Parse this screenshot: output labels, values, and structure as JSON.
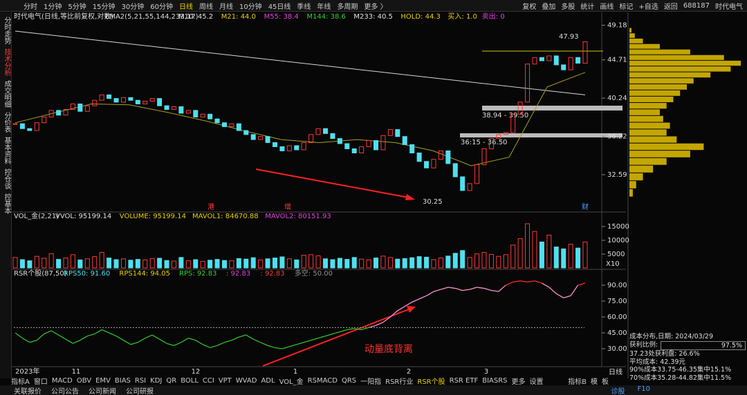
{
  "toolbar": {
    "periods": [
      "分时",
      "1分钟",
      "5分钟",
      "15分钟",
      "30分钟",
      "60分钟",
      "日线",
      "周线",
      "月线",
      "10分钟",
      "45日线",
      "季线",
      "年线",
      "多周期",
      "更多 〉"
    ],
    "tools": [
      "复权",
      "叠加",
      "多股",
      "统计",
      "画线",
      "标记",
      "+自选",
      "返回"
    ],
    "code": "688187",
    "name": "时代电气"
  },
  "sidebar": [
    "分时走势",
    "技术分析",
    "成交明细",
    "分价表",
    "基本资料",
    "控仓谈",
    "控基本"
  ],
  "price_header": {
    "title": "时代电气(日线,等比前复权,对数)",
    "indicator": "EMA2(5,21,55,144,233,17)",
    "stats": [
      {
        "text": "M10: 45.2",
        "color": "#e0e0e0"
      },
      {
        "text": "M21: 44.0",
        "color": "#e8d000"
      },
      {
        "text": "M55: 38.4",
        "color": "#e040e0"
      },
      {
        "text": "M144: 38.6",
        "color": "#30d030"
      },
      {
        "text": "M233: 40.5",
        "color": "#e0e0e0"
      },
      {
        "text": "HOLD: 44.3",
        "color": "#e8d000"
      },
      {
        "text": "买入: 1.0",
        "color": "#e8d000"
      },
      {
        "text": "卖出: 0",
        "color": "#e040e0"
      }
    ]
  },
  "annotations": {
    "high": "47.93",
    "range1": "38.94 - 39.50",
    "range2": "36:15 - 36.50",
    "low": "30.25",
    "markers": [
      "港",
      "增",
      "财"
    ],
    "divergence": "动量底背离"
  },
  "price_chart": {
    "type": "candlestick",
    "log_scale": true,
    "ylim": [
      29.8,
      49.8
    ],
    "yticks": [
      49.18,
      44.71,
      40.24,
      36.22,
      32.59
    ],
    "up_color": "#ff3838",
    "down_color": "#4ee0f0",
    "closes": [
      37.5,
      37.0,
      36.8,
      37.6,
      38.2,
      38.9,
      38.4,
      39.0,
      39.6,
      38.8,
      39.4,
      40.0,
      40.6,
      40.2,
      39.8,
      40.3,
      40.0,
      39.6,
      39.9,
      40.2,
      39.4,
      39.0,
      39.3,
      38.6,
      38.9,
      38.2,
      38.5,
      38.0,
      37.6,
      37.2,
      37.5,
      36.8,
      36.4,
      35.9,
      36.2,
      35.6,
      35.2,
      34.8,
      35.3,
      34.9,
      35.6,
      36.4,
      37.0,
      36.5,
      36.0,
      35.5,
      35.0,
      34.6,
      35.2,
      35.8,
      34.9,
      36.3,
      36.9,
      36.2,
      35.4,
      34.6,
      33.8,
      33.2,
      34.0,
      34.8,
      33.6,
      32.4,
      31.2,
      31.8,
      33.5,
      35.0,
      36.0,
      36.4,
      36.6,
      38.5,
      39.8,
      44.2,
      45.0,
      44.6,
      45.2,
      44.1,
      43.5,
      45.0,
      44.3,
      47.0
    ],
    "long_ma": {
      "color": "#d8d8d8",
      "values": [
        48.4,
        40.6
      ]
    },
    "short_ma": {
      "color": "#a8a020",
      "values": [
        37.6,
        38.6,
        39.6,
        39.5,
        38.7,
        37.8,
        36.8,
        35.9,
        35.6,
        35.9,
        35.6,
        34.8,
        33.4,
        34.2,
        41.5,
        43.2
      ]
    },
    "x_labels": [
      "2023年",
      "11",
      "12",
      "1",
      "2",
      "3"
    ],
    "period": "日线"
  },
  "volume_chart": {
    "type": "bar",
    "title": "VOL_金(2,21)",
    "stats": [
      {
        "text": "VVOL: 95199.14",
        "color": "#e0e0e0"
      },
      {
        "text": "VOLUME: 95199.14",
        "color": "#e8d000"
      },
      {
        "text": "MAVOL1: 84670.88",
        "color": "#e8d000"
      },
      {
        "text": "MAVOL2: 80151.93",
        "color": "#e040e0"
      }
    ],
    "ylim": [
      0,
      20000
    ],
    "yticks": [
      5000,
      10000,
      15000
    ],
    "unit": "X10",
    "values": [
      3800,
      3000,
      2600,
      4200,
      3500,
      5200,
      3100,
      3600,
      4800,
      2900,
      3300,
      4100,
      5600,
      3600,
      3000,
      3300,
      2800,
      3100,
      2900,
      3400,
      3500,
      2700,
      2500,
      3800,
      2600,
      3000,
      2400,
      2800,
      3100,
      2700,
      2600,
      3400,
      3200,
      3700,
      2900,
      3300,
      3600,
      4000,
      3300,
      2900,
      4600,
      4800,
      4400,
      3300,
      3000,
      3500,
      3100,
      3800,
      3200,
      2900,
      3600,
      4300,
      3800,
      3200,
      3400,
      3700,
      4100,
      3900,
      3000,
      3600,
      4300,
      5300,
      6300,
      3800,
      5100,
      5600,
      4900,
      4200,
      4800,
      8300,
      10600,
      16000,
      13200,
      9400,
      11900,
      7600,
      6900,
      8600,
      7200,
      9400
    ]
  },
  "rsr_chart": {
    "type": "line",
    "title": "RSR个股(87,50)",
    "stats": [
      {
        "text": "RPS50: 91.60",
        "color": "#4ee0f0"
      },
      {
        "text": "RPS144: 94.05",
        "color": "#e8d000"
      },
      {
        "text": "RPS: 92.83",
        "color": "#30d030"
      },
      {
        "text": ": 92.83",
        "color": "#e040e0"
      },
      {
        "text": ": 92.83",
        "color": "#ff3838"
      },
      {
        "text": "多空: 50.00",
        "color": "#909090"
      }
    ],
    "ylim": [
      13.7,
      101.7
    ],
    "yticks": [
      {
        "value": 90,
        "label": "90.00"
      },
      {
        "value": 75,
        "label": "75.00"
      },
      {
        "value": 60,
        "label": "60.00"
      },
      {
        "value": 45,
        "label": "45.00"
      },
      {
        "value": 30,
        "label": "30.00"
      }
    ],
    "midline": 50,
    "values": [
      45,
      40,
      36,
      38,
      44,
      47,
      43,
      39,
      35,
      38,
      42,
      44,
      48,
      45,
      42,
      38,
      34,
      36,
      40,
      43,
      39,
      35,
      33,
      36,
      40,
      38,
      34,
      31,
      33,
      36,
      38,
      41,
      43,
      39,
      36,
      33,
      31,
      30,
      32,
      34,
      36,
      38,
      40,
      42,
      44,
      46,
      48,
      49,
      48,
      50,
      52,
      55,
      60,
      66,
      70,
      74,
      77,
      80,
      84,
      86,
      88,
      87,
      85,
      86,
      88,
      87,
      85,
      84,
      90,
      93,
      94,
      93,
      94,
      92,
      88,
      82,
      78,
      80,
      90,
      92
    ]
  },
  "chips": {
    "color": "#d8b800",
    "xlim": [
      0,
      170
    ],
    "prices": [
      31.0,
      31.7,
      32.4,
      33.1,
      33.8,
      34.5,
      35.2,
      35.9,
      36.6,
      37.3,
      38.0,
      38.7,
      39.4,
      40.1,
      40.8,
      41.5,
      42.2,
      42.9,
      43.6,
      44.3,
      45.0,
      45.7,
      46.4,
      47.1,
      47.8,
      48.5
    ],
    "values": [
      5,
      10,
      20,
      35,
      55,
      90,
      110,
      70,
      55,
      60,
      50,
      45,
      55,
      65,
      75,
      85,
      95,
      120,
      150,
      165,
      140,
      90,
      45,
      20,
      8,
      3
    ]
  },
  "chip_info": {
    "date": "成本分布,日期: 2024/03/29",
    "profit_label": "获利比例:",
    "profit": "97.5%",
    "line2": "37.23处获利盘: 26.6%",
    "line3": "平均成本: 42.39元",
    "line4": "90%成本33.75-46.35集中15.1%",
    "line5": "70%成本35.28-44.82集中11.5%"
  },
  "tabs": [
    "指标A",
    "窗口",
    "MACD",
    "OBV",
    "EMV",
    "BIAS",
    "RSI",
    "KDJ",
    "QR",
    "BOLL",
    "CCI",
    "VPT",
    "WVAD",
    "ADL",
    "VOL_金",
    "RSMACD",
    "QRS",
    "一阳指",
    "RSR行业",
    "RSR个股",
    "RSR ETF",
    "BIASRS",
    "更多",
    "设置"
  ],
  "tabs_right": [
    "指标B",
    "模",
    "板"
  ],
  "footer": [
    "关联报价",
    "公司公告",
    "公司新闻",
    "公司研报"
  ],
  "footer_right": [
    "诊股",
    "F10"
  ]
}
